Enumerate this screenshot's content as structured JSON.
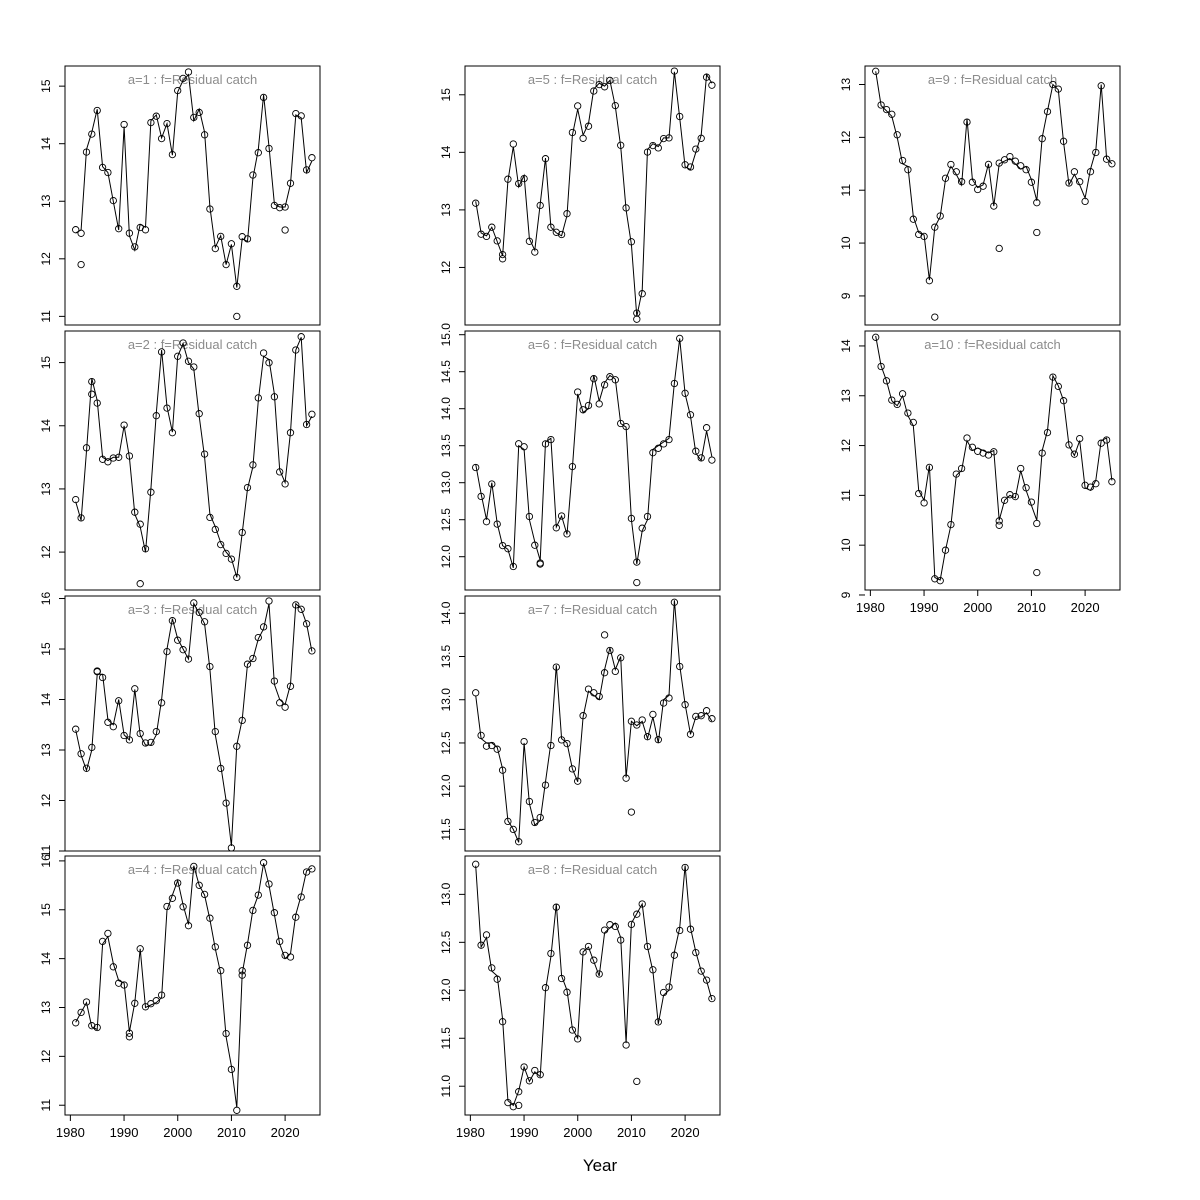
{
  "figure": {
    "xlabel": "Year",
    "background": "#ffffff",
    "axis_color": "#000000",
    "title_color": "#8c8c8c",
    "xlim": [
      1979,
      2026.5
    ],
    "xticks": [
      1980,
      1990,
      2000,
      2010,
      2020
    ],
    "xtick_labels": [
      "1980",
      "1990",
      "2000",
      "2010",
      "2020"
    ]
  },
  "chart_data": [
    {
      "id": "a1",
      "type": "line",
      "title": "a=1  :  f=Residual catch",
      "col": 0,
      "row": 0,
      "x_start": 1981,
      "x_step": 1,
      "ylim": [
        10.85,
        15.35
      ],
      "yticks": [
        11,
        12,
        13,
        14,
        15
      ],
      "ytick_labels": [
        "11",
        "12",
        "13",
        "14",
        "15"
      ],
      "show_x_labels": false,
      "values": [
        12.45,
        12.5,
        13.9,
        14.2,
        14.6,
        13.6,
        13.5,
        13.0,
        12.5,
        14.3,
        12.4,
        12.15,
        12.6,
        12.55,
        14.4,
        14.5,
        14.1,
        14.35,
        13.8,
        14.9,
        15.1,
        15.2,
        14.4,
        14.6,
        14.2,
        12.9,
        12.2,
        12.4,
        11.9,
        12.25,
        11.5,
        12.35,
        12.3,
        13.4,
        13.9,
        14.85,
        13.95,
        12.95,
        12.9,
        12.9,
        13.3,
        14.5,
        14.45,
        13.5,
        13.7
      ],
      "outliers": [
        {
          "x": 1982,
          "y": 11.9
        },
        {
          "x": 2011,
          "y": 11.0
        },
        {
          "x": 2020,
          "y": 12.5
        }
      ]
    },
    {
      "id": "a2",
      "type": "line",
      "title": "a=2  :  f=Residual catch",
      "col": 0,
      "row": 1,
      "x_start": 1981,
      "x_step": 1,
      "ylim": [
        11.4,
        15.5
      ],
      "yticks": [
        12,
        13,
        14,
        15
      ],
      "ytick_labels": [
        "12",
        "13",
        "14",
        "15"
      ],
      "show_x_labels": false,
      "values": [
        12.8,
        12.5,
        13.6,
        14.75,
        14.4,
        13.5,
        13.45,
        13.5,
        13.5,
        14.0,
        13.5,
        12.6,
        12.4,
        12.0,
        13.0,
        14.2,
        15.2,
        14.3,
        13.9,
        15.1,
        15.3,
        15.0,
        14.9,
        14.15,
        13.5,
        12.6,
        12.4,
        12.15,
        12.0,
        11.9,
        11.6,
        12.3,
        13.0,
        13.35,
        14.4,
        15.1,
        15.05,
        14.5,
        13.3,
        13.1,
        13.9,
        15.2,
        15.4,
        14.0,
        14.15
      ],
      "outliers": [
        {
          "x": 1993,
          "y": 11.5
        },
        {
          "x": 1984,
          "y": 14.5
        }
      ]
    },
    {
      "id": "a3",
      "type": "line",
      "title": "a=3  :  f=Residual catch",
      "col": 0,
      "row": 2,
      "x_start": 1981,
      "x_step": 1,
      "ylim": [
        11.0,
        16.05
      ],
      "yticks": [
        11,
        12,
        13,
        14,
        15,
        16
      ],
      "ytick_labels": [
        "11",
        "12",
        "13",
        "14",
        "15",
        "16"
      ],
      "show_x_labels": false,
      "values": [
        13.4,
        12.9,
        12.6,
        13.0,
        14.5,
        14.5,
        13.6,
        13.5,
        14.0,
        13.3,
        13.2,
        14.2,
        13.3,
        13.1,
        13.1,
        13.3,
        14.0,
        15.0,
        15.6,
        15.2,
        15.0,
        14.8,
        15.9,
        15.7,
        15.5,
        14.6,
        13.3,
        12.7,
        12.0,
        11.1,
        13.1,
        13.6,
        14.7,
        14.8,
        15.2,
        15.4,
        15.9,
        14.3,
        14.0,
        13.9,
        14.3,
        15.9,
        15.8,
        15.5,
        14.95
      ],
      "outliers": [
        {
          "x": 1985,
          "y": 14.55
        }
      ]
    },
    {
      "id": "a4",
      "type": "line",
      "title": "a=4  :  f=Residual catch",
      "col": 0,
      "row": 3,
      "x_start": 1981,
      "x_step": 1,
      "ylim": [
        10.8,
        16.1
      ],
      "yticks": [
        11,
        12,
        13,
        14,
        15,
        16
      ],
      "ytick_labels": [
        "11",
        "12",
        "13",
        "14",
        "15",
        "16"
      ],
      "show_x_labels": true,
      "values": [
        12.7,
        12.9,
        13.1,
        12.6,
        12.55,
        14.3,
        14.45,
        13.9,
        13.55,
        13.5,
        12.5,
        13.1,
        14.2,
        13.0,
        13.05,
        13.1,
        13.2,
        15.0,
        15.3,
        15.6,
        15.1,
        14.7,
        15.9,
        15.5,
        15.3,
        14.8,
        14.2,
        13.7,
        12.4,
        11.8,
        10.95,
        13.7,
        14.3,
        15.0,
        15.3,
        15.95,
        15.5,
        14.9,
        14.3,
        14.0,
        14.1,
        14.9,
        15.3,
        15.8,
        15.85
      ],
      "outliers": [
        {
          "x": 1991,
          "y": 12.4
        },
        {
          "x": 2012,
          "y": 13.75
        }
      ]
    },
    {
      "id": "a5",
      "type": "line",
      "title": "a=5  :  f=Residual catch",
      "col": 1,
      "row": 0,
      "x_start": 1981,
      "x_step": 1,
      "ylim": [
        11.0,
        15.5
      ],
      "yticks": [
        12,
        13,
        14,
        15
      ],
      "ytick_labels": [
        "12",
        "13",
        "14",
        "15"
      ],
      "show_x_labels": false,
      "values": [
        13.15,
        12.6,
        12.55,
        12.7,
        12.45,
        12.2,
        13.5,
        14.1,
        13.4,
        13.6,
        12.5,
        12.3,
        13.1,
        13.9,
        12.7,
        12.6,
        12.55,
        12.9,
        14.3,
        14.75,
        14.3,
        14.5,
        15.1,
        15.2,
        15.15,
        15.25,
        14.8,
        14.1,
        13.0,
        12.4,
        11.15,
        11.6,
        14.05,
        14.15,
        14.1,
        14.25,
        14.25,
        15.4,
        14.6,
        13.75,
        13.7,
        14.0,
        14.3,
        15.35,
        15.2
      ],
      "outliers": [
        {
          "x": 1986,
          "y": 12.15
        },
        {
          "x": 2011,
          "y": 11.1
        }
      ]
    },
    {
      "id": "a6",
      "type": "line",
      "title": "a=6  :  f=Residual catch",
      "col": 1,
      "row": 1,
      "x_start": 1981,
      "x_step": 1,
      "ylim": [
        11.55,
        15.05
      ],
      "yticks": [
        12.0,
        12.5,
        13.0,
        13.5,
        14.0,
        14.5,
        15.0
      ],
      "ytick_labels": [
        "12.0",
        "12.5",
        "13.0",
        "13.5",
        "14.0",
        "14.5",
        "15.0"
      ],
      "show_x_labels": false,
      "values": [
        13.25,
        12.85,
        12.5,
        13.0,
        12.45,
        12.15,
        12.1,
        11.85,
        13.5,
        13.45,
        12.5,
        12.2,
        11.95,
        13.55,
        13.6,
        12.4,
        12.55,
        12.3,
        13.2,
        14.2,
        13.95,
        14.0,
        14.45,
        14.1,
        14.35,
        14.45,
        14.4,
        13.8,
        13.75,
        12.5,
        11.9,
        12.35,
        12.5,
        13.45,
        13.5,
        13.55,
        13.6,
        14.35,
        14.95,
        14.2,
        13.9,
        13.4,
        13.3,
        13.7,
        13.35
      ],
      "outliers": [
        {
          "x": 2011,
          "y": 11.65
        },
        {
          "x": 1993,
          "y": 11.9
        }
      ]
    },
    {
      "id": "a7",
      "type": "line",
      "title": "a=7  :  f=Residual catch",
      "col": 1,
      "row": 2,
      "x_start": 1981,
      "x_step": 1,
      "ylim": [
        11.25,
        14.2
      ],
      "yticks": [
        11.5,
        12.0,
        12.5,
        13.0,
        13.5,
        14.0
      ],
      "ytick_labels": [
        "11.5",
        "12.0",
        "12.5",
        "13.0",
        "13.5",
        "14.0"
      ],
      "show_x_labels": false,
      "values": [
        13.05,
        12.55,
        12.5,
        12.5,
        12.45,
        12.2,
        11.6,
        11.5,
        11.35,
        12.5,
        11.8,
        11.55,
        11.6,
        12.05,
        12.5,
        13.4,
        12.55,
        12.5,
        12.2,
        12.05,
        12.8,
        13.1,
        13.05,
        13.0,
        13.35,
        13.6,
        13.35,
        13.5,
        12.1,
        12.75,
        12.7,
        12.75,
        12.55,
        12.8,
        12.5,
        13.0,
        13.05,
        14.15,
        13.4,
        12.95,
        12.6,
        12.8,
        12.8,
        12.85,
        12.75
      ],
      "outliers": [
        {
          "x": 2010,
          "y": 11.7
        },
        {
          "x": 2005,
          "y": 13.75
        }
      ]
    },
    {
      "id": "a8",
      "type": "line",
      "title": "a=8  :  f=Residual catch",
      "col": 1,
      "row": 3,
      "x_start": 1981,
      "x_step": 1,
      "ylim": [
        10.7,
        13.4
      ],
      "yticks": [
        11.0,
        11.5,
        12.0,
        12.5,
        13.0
      ],
      "ytick_labels": [
        "11.0",
        "11.5",
        "12.0",
        "12.5",
        "13.0"
      ],
      "show_x_labels": true,
      "values": [
        13.3,
        12.45,
        12.55,
        12.2,
        12.15,
        11.7,
        10.85,
        10.8,
        10.95,
        11.2,
        11.05,
        11.15,
        11.1,
        12.0,
        12.35,
        12.9,
        12.15,
        12.0,
        11.6,
        11.5,
        12.4,
        12.45,
        12.3,
        12.15,
        12.6,
        12.65,
        12.7,
        12.55,
        11.45,
        12.7,
        12.8,
        12.9,
        12.45,
        12.2,
        11.65,
        11.95,
        12.0,
        12.4,
        12.65,
        13.3,
        12.65,
        12.4,
        12.2,
        12.1,
        11.9
      ],
      "outliers": [
        {
          "x": 2011,
          "y": 11.05
        },
        {
          "x": 1989,
          "y": 10.8
        }
      ]
    },
    {
      "id": "a9",
      "type": "line",
      "title": "a=9  :  f=Residual catch",
      "col": 2,
      "row": 0,
      "x_start": 1981,
      "x_step": 1,
      "ylim": [
        8.45,
        13.35
      ],
      "yticks": [
        9,
        10,
        11,
        12,
        13
      ],
      "ytick_labels": [
        "9",
        "10",
        "11",
        "12",
        "13"
      ],
      "show_x_labels": false,
      "values": [
        13.25,
        12.6,
        12.5,
        12.4,
        12.0,
        11.5,
        11.45,
        10.5,
        10.2,
        10.15,
        9.3,
        10.3,
        10.5,
        11.2,
        11.45,
        11.3,
        11.1,
        12.35,
        11.2,
        11.05,
        11.1,
        11.5,
        10.7,
        11.5,
        11.55,
        11.6,
        11.5,
        11.4,
        11.45,
        11.2,
        10.8,
        12.0,
        12.5,
        13.0,
        12.9,
        11.9,
        11.1,
        11.3,
        11.1,
        10.85,
        11.4,
        11.75,
        13.0,
        11.6,
        11.5
      ],
      "outliers": [
        {
          "x": 1992,
          "y": 8.6
        },
        {
          "x": 2004,
          "y": 9.9
        },
        {
          "x": 2011,
          "y": 10.2
        }
      ]
    },
    {
      "id": "a10",
      "type": "line",
      "title": "a=10  :  f=Residual catch",
      "col": 2,
      "row": 1,
      "x_start": 1981,
      "x_step": 1,
      "ylim": [
        9.1,
        14.3
      ],
      "yticks": [
        9,
        10,
        11,
        12,
        13,
        14
      ],
      "ytick_labels": [
        "9",
        "10",
        "11",
        "12",
        "13",
        "14"
      ],
      "show_x_labels": true,
      "values": [
        14.2,
        13.6,
        13.3,
        12.9,
        12.8,
        13.0,
        12.6,
        12.4,
        11.1,
        10.9,
        11.6,
        9.35,
        9.3,
        9.9,
        10.4,
        11.4,
        11.5,
        12.1,
        11.9,
        11.95,
        11.9,
        11.85,
        11.9,
        10.5,
        10.9,
        11.0,
        10.95,
        11.5,
        11.1,
        10.8,
        10.5,
        11.9,
        12.3,
        13.4,
        13.2,
        12.9,
        12.0,
        11.8,
        12.1,
        11.15,
        11.1,
        11.3,
        12.1,
        12.15,
        11.3
      ],
      "outliers": [
        {
          "x": 2011,
          "y": 9.45
        },
        {
          "x": 2004,
          "y": 10.4
        }
      ]
    }
  ]
}
